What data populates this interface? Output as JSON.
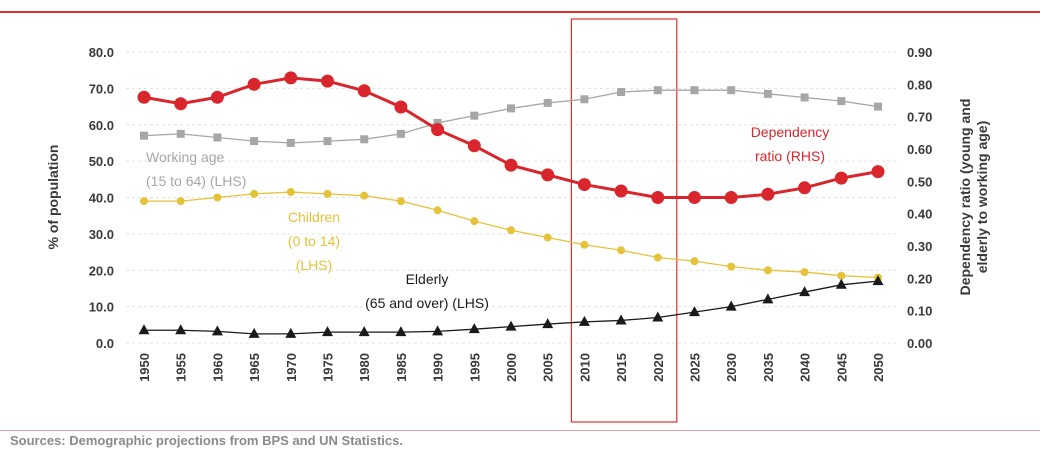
{
  "chart_data": {
    "type": "line",
    "x": [
      1950,
      1955,
      1960,
      1965,
      1970,
      1975,
      1980,
      1985,
      1990,
      1995,
      2000,
      2005,
      2010,
      2015,
      2020,
      2025,
      2030,
      2035,
      2040,
      2045,
      2050
    ],
    "x_tick_labels": [
      "1950",
      "1955",
      "1960",
      "1965",
      "1970",
      "1975",
      "1980",
      "1985",
      "1990",
      "1995",
      "2000",
      "2005",
      "2010",
      "2015",
      "2020",
      "2025",
      "2030",
      "2035",
      "2040",
      "2045",
      "2050"
    ],
    "ylabel_left": "% of population",
    "ylabel_right_lines": [
      "Dependency ratio (young and",
      "elderly to working age)"
    ],
    "ylim_left": [
      0,
      80
    ],
    "ylim_right": [
      0,
      0.9
    ],
    "yticks_left": [
      "0.0",
      "10.0",
      "20.0",
      "30.0",
      "40.0",
      "50.0",
      "60.0",
      "70.0",
      "80.0"
    ],
    "yticks_right": [
      "0.00",
      "0.10",
      "0.20",
      "0.30",
      "0.40",
      "0.50",
      "0.60",
      "0.70",
      "0.80",
      "0.90"
    ],
    "grid": true,
    "highlight_range": [
      2010,
      2020
    ],
    "series": [
      {
        "key": "working",
        "axis": "left",
        "color": "#a6a6a6",
        "marker": "square",
        "values": [
          57.0,
          57.5,
          56.5,
          55.5,
          55.0,
          55.5,
          56.0,
          57.5,
          60.5,
          62.5,
          64.5,
          66.0,
          67.0,
          69.0,
          69.5,
          69.5,
          69.5,
          68.5,
          67.5,
          66.5,
          65.0
        ]
      },
      {
        "key": "children",
        "axis": "left",
        "color": "#e5c23a",
        "marker": "circle",
        "values": [
          39.0,
          39.0,
          40.0,
          41.0,
          41.5,
          41.0,
          40.5,
          39.0,
          36.5,
          33.5,
          31.0,
          29.0,
          27.0,
          25.5,
          23.5,
          22.5,
          21.0,
          20.0,
          19.5,
          18.5,
          18.0
        ]
      },
      {
        "key": "elderly",
        "axis": "left",
        "color": "#1a1a1a",
        "marker": "triangle",
        "values": [
          3.5,
          3.5,
          3.2,
          2.5,
          2.5,
          3.0,
          3.0,
          3.0,
          3.2,
          3.8,
          4.5,
          5.2,
          5.8,
          6.2,
          7.0,
          8.5,
          10.0,
          12.0,
          14.0,
          16.0,
          17.0
        ]
      },
      {
        "key": "dependency",
        "axis": "right",
        "color": "#d9262c",
        "marker": "circle-large",
        "values": [
          0.76,
          0.74,
          0.76,
          0.8,
          0.82,
          0.81,
          0.78,
          0.73,
          0.66,
          0.61,
          0.55,
          0.52,
          0.49,
          0.47,
          0.45,
          0.45,
          0.45,
          0.46,
          0.48,
          0.51,
          0.53
        ]
      }
    ],
    "annotations": {
      "working": {
        "lines": [
          "Working age",
          "(15 to 64) (LHS)"
        ],
        "color": "#a6a6a6"
      },
      "children": {
        "lines": [
          "Children",
          "(0 to 14)",
          "(LHS)"
        ],
        "color": "#e5c23a"
      },
      "elderly": {
        "lines": [
          "Elderly",
          "(65 and over) (LHS)"
        ],
        "color": "#1a1a1a"
      },
      "dependency": {
        "lines": [
          "Dependency",
          "ratio (RHS)"
        ],
        "color": "#d9262c"
      }
    }
  },
  "source": "Sources: Demographic projections from BPS and UN Statistics."
}
